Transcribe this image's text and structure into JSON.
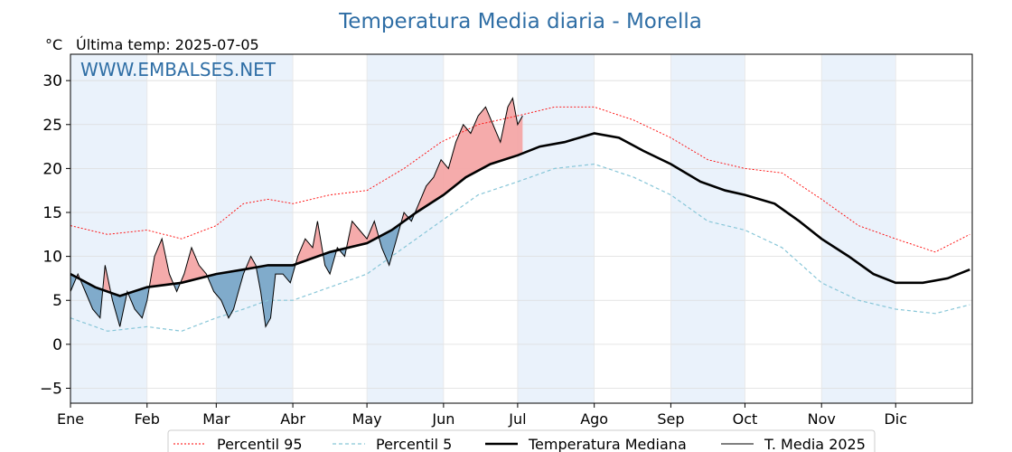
{
  "chart_data": {
    "type": "line",
    "title": "Temperatura Media diaria - Morella",
    "unit_label": "°C",
    "subtitle": "Última temp: 2025-07-05",
    "watermark": "WWW.EMBALSES.NET",
    "ylim": [
      -6.7,
      33
    ],
    "yticks": [
      -5,
      0,
      5,
      10,
      15,
      20,
      25,
      30
    ],
    "months": [
      "Ene",
      "Feb",
      "Mar",
      "Abr",
      "May",
      "Jun",
      "Jul",
      "Ago",
      "Sep",
      "Oct",
      "Nov",
      "Dic"
    ],
    "month_start_days": [
      0,
      31,
      59,
      90,
      120,
      151,
      181,
      212,
      243,
      273,
      304,
      334
    ],
    "year_days": 365,
    "shaded_months": [
      0,
      2,
      4,
      6,
      8,
      10
    ],
    "grid": true,
    "legend_position": "bottom-center",
    "legend": [
      "Percentil 95",
      "Percentil 5",
      "Temperatura Mediana",
      "T. Media 2025"
    ],
    "colors": {
      "p95": "#ff0000",
      "p5": "#87c6d8",
      "median": "#000000",
      "current": "#000000",
      "above_fill": "#f4a6a6",
      "below_fill": "#7aa6c8",
      "title": "#2f6ea5",
      "watermark": "#2f6ea5",
      "band": "#eaf2fb"
    },
    "series": [
      {
        "name": "Percentil 95",
        "key": "p95",
        "points": [
          [
            0,
            13.5
          ],
          [
            15,
            12.5
          ],
          [
            31,
            13
          ],
          [
            45,
            12
          ],
          [
            59,
            13.5
          ],
          [
            70,
            16
          ],
          [
            80,
            16.5
          ],
          [
            90,
            16
          ],
          [
            105,
            17
          ],
          [
            120,
            17.5
          ],
          [
            135,
            20
          ],
          [
            150,
            23
          ],
          [
            165,
            25
          ],
          [
            181,
            26
          ],
          [
            196,
            27
          ],
          [
            212,
            27
          ],
          [
            228,
            25.5
          ],
          [
            243,
            23.5
          ],
          [
            258,
            21
          ],
          [
            273,
            20
          ],
          [
            288,
            19.5
          ],
          [
            304,
            16.5
          ],
          [
            319,
            13.5
          ],
          [
            334,
            12
          ],
          [
            350,
            10.5
          ],
          [
            364,
            12.5
          ]
        ]
      },
      {
        "name": "Percentil 5",
        "key": "p5",
        "points": [
          [
            0,
            3
          ],
          [
            15,
            1.5
          ],
          [
            31,
            2
          ],
          [
            45,
            1.5
          ],
          [
            59,
            3
          ],
          [
            70,
            4
          ],
          [
            80,
            5
          ],
          [
            90,
            5
          ],
          [
            105,
            6.5
          ],
          [
            120,
            8
          ],
          [
            135,
            11
          ],
          [
            150,
            14
          ],
          [
            165,
            17
          ],
          [
            181,
            18.5
          ],
          [
            196,
            20
          ],
          [
            212,
            20.5
          ],
          [
            228,
            19
          ],
          [
            243,
            17
          ],
          [
            258,
            14
          ],
          [
            273,
            13
          ],
          [
            288,
            11
          ],
          [
            304,
            7
          ],
          [
            319,
            5
          ],
          [
            334,
            4
          ],
          [
            350,
            3.5
          ],
          [
            364,
            4.5
          ]
        ]
      },
      {
        "name": "Temperatura Mediana",
        "key": "median",
        "points": [
          [
            0,
            8
          ],
          [
            10,
            6.5
          ],
          [
            20,
            5.5
          ],
          [
            31,
            6.5
          ],
          [
            45,
            7
          ],
          [
            59,
            8
          ],
          [
            70,
            8.5
          ],
          [
            80,
            9
          ],
          [
            90,
            9
          ],
          [
            105,
            10.5
          ],
          [
            120,
            11.5
          ],
          [
            130,
            13
          ],
          [
            140,
            15
          ],
          [
            151,
            17
          ],
          [
            160,
            19
          ],
          [
            170,
            20.5
          ],
          [
            181,
            21.5
          ],
          [
            190,
            22.5
          ],
          [
            200,
            23
          ],
          [
            212,
            24
          ],
          [
            222,
            23.5
          ],
          [
            232,
            22
          ],
          [
            243,
            20.5
          ],
          [
            255,
            18.5
          ],
          [
            265,
            17.5
          ],
          [
            273,
            17
          ],
          [
            285,
            16
          ],
          [
            295,
            14
          ],
          [
            304,
            12
          ],
          [
            315,
            10
          ],
          [
            325,
            8
          ],
          [
            334,
            7
          ],
          [
            345,
            7
          ],
          [
            355,
            7.5
          ],
          [
            364,
            8.5
          ]
        ]
      },
      {
        "name": "T. Media 2025",
        "key": "current",
        "points": [
          [
            0,
            6
          ],
          [
            3,
            8
          ],
          [
            6,
            6
          ],
          [
            9,
            4
          ],
          [
            12,
            3
          ],
          [
            14,
            9
          ],
          [
            17,
            5
          ],
          [
            20,
            2
          ],
          [
            23,
            6
          ],
          [
            26,
            4
          ],
          [
            29,
            3
          ],
          [
            31,
            5
          ],
          [
            34,
            10
          ],
          [
            37,
            12
          ],
          [
            40,
            8
          ],
          [
            43,
            6
          ],
          [
            46,
            8
          ],
          [
            49,
            11
          ],
          [
            52,
            9
          ],
          [
            55,
            8
          ],
          [
            58,
            6
          ],
          [
            61,
            5
          ],
          [
            64,
            3
          ],
          [
            66,
            4
          ],
          [
            68,
            6
          ],
          [
            70,
            8
          ],
          [
            73,
            10
          ],
          [
            75,
            9
          ],
          [
            77,
            6
          ],
          [
            79,
            2
          ],
          [
            81,
            3
          ],
          [
            83,
            8
          ],
          [
            86,
            8
          ],
          [
            89,
            7
          ],
          [
            92,
            10
          ],
          [
            95,
            12
          ],
          [
            98,
            11
          ],
          [
            100,
            14
          ],
          [
            103,
            9
          ],
          [
            105,
            8
          ],
          [
            108,
            11
          ],
          [
            111,
            10
          ],
          [
            114,
            14
          ],
          [
            117,
            13
          ],
          [
            120,
            12
          ],
          [
            123,
            14
          ],
          [
            126,
            11
          ],
          [
            129,
            9
          ],
          [
            132,
            12
          ],
          [
            135,
            15
          ],
          [
            138,
            14
          ],
          [
            141,
            16
          ],
          [
            144,
            18
          ],
          [
            147,
            19
          ],
          [
            150,
            21
          ],
          [
            153,
            20
          ],
          [
            156,
            23
          ],
          [
            159,
            25
          ],
          [
            162,
            24
          ],
          [
            165,
            26
          ],
          [
            168,
            27
          ],
          [
            171,
            25
          ],
          [
            174,
            23
          ],
          [
            177,
            27
          ],
          [
            179,
            28
          ],
          [
            181,
            25
          ],
          [
            183,
            26
          ]
        ]
      }
    ]
  }
}
